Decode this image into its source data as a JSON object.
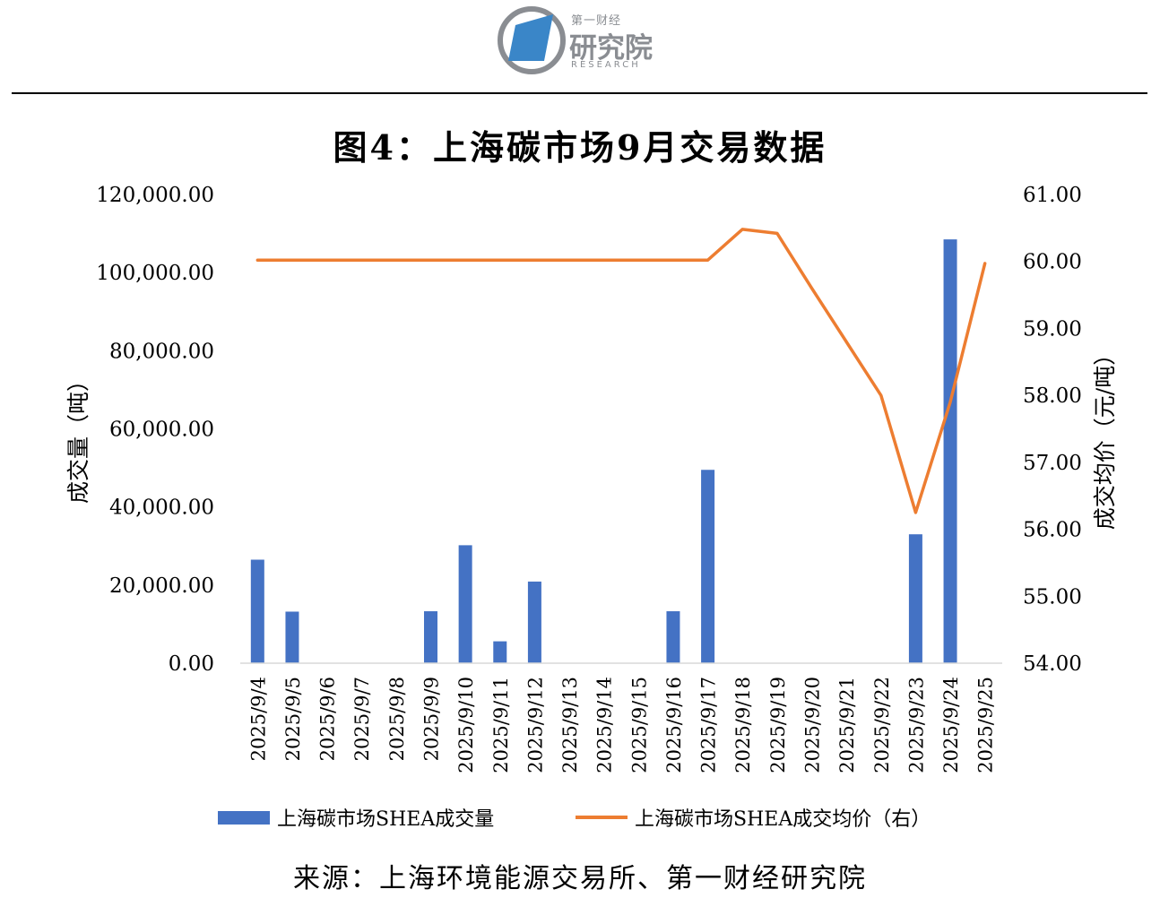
{
  "header": {
    "logo": {
      "top_text": "第一财经",
      "main_text": "研究院",
      "en_text": "RESEARCH"
    }
  },
  "title": "图4：上海碳市场9月交易数据",
  "source": "来源：上海环境能源交易所、第一财经研究院",
  "colors": {
    "bar": "#4472c4",
    "line": "#ed7d31",
    "logo_blue": "#3a86c8",
    "logo_gray": "#8a8d92"
  },
  "chart_data": {
    "type": "bar",
    "categories": [
      "2025/9/4",
      "2025/9/5",
      "2025/9/6",
      "2025/9/7",
      "2025/9/8",
      "2025/9/9",
      "2025/9/10",
      "2025/9/11",
      "2025/9/12",
      "2025/9/13",
      "2025/9/14",
      "2025/9/15",
      "2025/9/16",
      "2025/9/17",
      "2025/9/18",
      "2025/9/19",
      "2025/9/20",
      "2025/9/21",
      "2025/9/22",
      "2025/9/23",
      "2025/9/24",
      "2025/9/25"
    ],
    "ylabel": "成交量（吨）",
    "y2label": "成交均价（元/吨）",
    "ylim": [
      0,
      120000
    ],
    "y2lim": [
      54,
      61
    ],
    "yticks": [
      "0.00",
      "20,000.00",
      "40,000.00",
      "60,000.00",
      "80,000.00",
      "100,000.00",
      "120,000.00"
    ],
    "y2ticks": [
      "54.00",
      "55.00",
      "56.00",
      "57.00",
      "58.00",
      "59.00",
      "60.00",
      "61.00"
    ],
    "legend_position": "bottom",
    "series": [
      {
        "name": "上海碳市场SHEA成交量",
        "type": "bar",
        "axis": "left",
        "values": [
          26500,
          13200,
          0,
          0,
          0,
          13300,
          30200,
          5600,
          20900,
          0,
          0,
          0,
          13300,
          49500,
          0,
          0,
          0,
          0,
          0,
          33000,
          108500,
          0
        ]
      },
      {
        "name": "上海碳市场SHEA成交均价（右）",
        "type": "line",
        "axis": "right",
        "values": [
          60.02,
          60.02,
          60.02,
          60.02,
          60.02,
          60.02,
          60.02,
          60.02,
          60.02,
          60.02,
          60.02,
          60.02,
          60.02,
          60.02,
          60.48,
          60.42,
          59.6,
          58.8,
          58.0,
          56.25,
          57.9,
          59.97
        ]
      }
    ]
  }
}
